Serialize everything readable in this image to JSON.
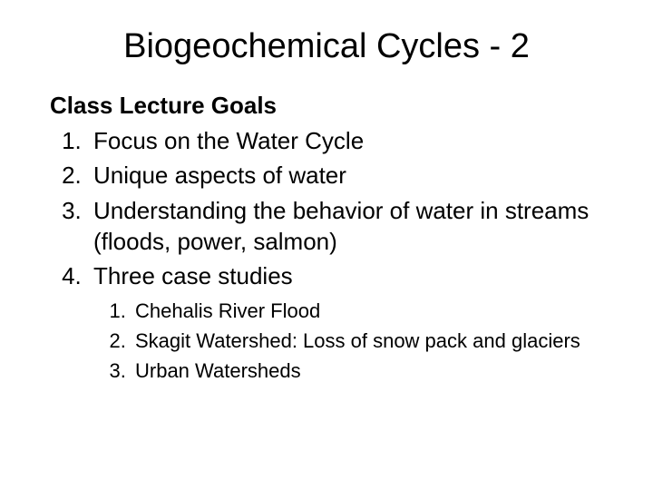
{
  "slide": {
    "title": "Biogeochemical Cycles - 2",
    "subtitle": "Class Lecture Goals",
    "title_fontsize": 38,
    "subtitle_fontsize": 26,
    "body_fontsize": 26,
    "sub_fontsize": 22,
    "line_height": 1.32,
    "text_color": "#000000",
    "background_color": "#ffffff",
    "items": [
      "Focus on the Water Cycle",
      "Unique aspects of water",
      "Understanding the behavior of water in streams (floods, power, salmon)",
      "Three case studies"
    ],
    "subitems": [
      "Chehalis River Flood",
      "Skagit Watershed: Loss of snow pack and glaciers",
      "Urban Watersheds"
    ]
  }
}
